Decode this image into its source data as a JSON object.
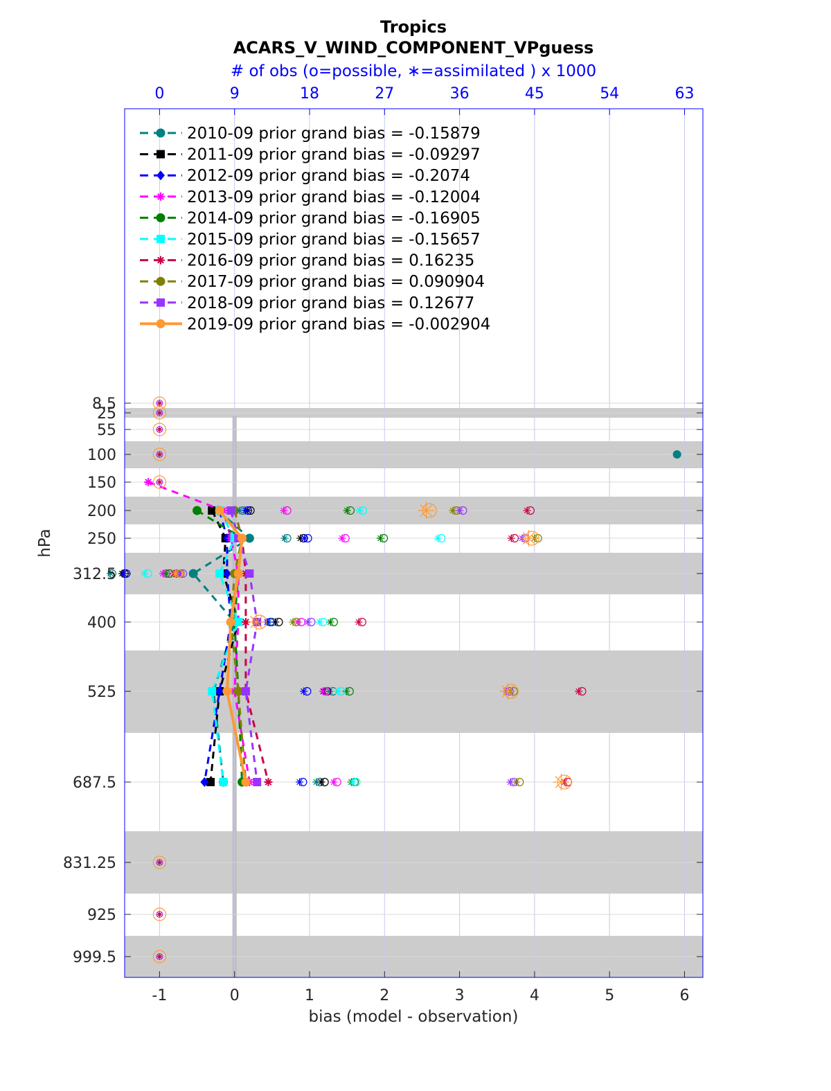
{
  "chart_data": {
    "type": "line",
    "title": "Tropics",
    "subtitle": "ACARS_V_WIND_COMPONENT_VPguess",
    "top_axis_label": "# of obs (o=possible, ∗=assimilated ) x 1000",
    "top_axis_ticks": [
      "0",
      "9",
      "18",
      "27",
      "36",
      "45",
      "54",
      "63"
    ],
    "xlabel": "bias (model - observation)",
    "ylabel": "hPa",
    "xlim": [
      -1.5,
      6.25
    ],
    "x_ticks": [
      "-1",
      "0",
      "1",
      "2",
      "3",
      "4",
      "5",
      "6"
    ],
    "levels": [
      8.5,
      25,
      55,
      100,
      150,
      200,
      250,
      312.5,
      400,
      525,
      687.5,
      831.25,
      925,
      999.5
    ],
    "level_labels": [
      "8.5",
      "25",
      "55",
      "100",
      "150",
      "200",
      "250",
      "312.5",
      "400",
      "525",
      "687.5",
      "831.25",
      "925",
      "999.5"
    ],
    "grid": true,
    "legend_position": "top-left",
    "series": [
      {
        "name": "2010-09 prior grand bias = -0.15879",
        "color": "#008080",
        "marker": "circle",
        "bias": {
          "200": -0.22,
          "250": 0.2,
          "312.5": -0.55,
          "400": 0.0,
          "525": -0.28,
          "687.5": -0.15
        },
        "obs_possible": {
          "200": 10.0,
          "250": 15.3,
          "312.5": -5.7,
          "400": 13.5,
          "525": 20.8,
          "687.5": 19.2
        },
        "obs_assimilated": {
          "200": 9.6,
          "250": 15.0,
          "312.5": -5.9,
          "400": 13.1,
          "525": 20.4,
          "687.5": 18.8
        }
      },
      {
        "name": "2011-09 prior grand bias = -0.09297",
        "color": "#000000",
        "marker": "square",
        "bias": {
          "200": -0.3,
          "250": -0.12,
          "312.5": -0.15,
          "400": 0.05,
          "525": -0.2,
          "687.5": -0.32
        },
        "obs_possible": {
          "200": 10.9,
          "250": 17.3,
          "312.5": -4.2,
          "400": 14.3,
          "525": 20.1,
          "687.5": 19.8
        },
        "obs_assimilated": {
          "200": 10.6,
          "250": 16.9,
          "312.5": -4.5,
          "400": 13.9,
          "525": 19.7,
          "687.5": 19.4
        }
      },
      {
        "name": "2012-09 prior grand bias = -0.2074",
        "color": "#0000ff",
        "marker": "diamond",
        "bias": {
          "200": -0.2,
          "250": -0.1,
          "312.5": -0.1,
          "400": -0.05,
          "525": -0.2,
          "687.5": -0.4
        },
        "obs_possible": {
          "200": 10.6,
          "250": 17.8,
          "312.5": -4.0,
          "400": 13.3,
          "525": 17.7,
          "687.5": 17.2
        },
        "obs_assimilated": {
          "200": 10.3,
          "250": 17.4,
          "312.5": -4.3,
          "400": 12.9,
          "525": 17.3,
          "687.5": 16.8
        }
      },
      {
        "name": "2013-09 prior grand bias = -0.12004",
        "color": "#ff00ff",
        "marker": "star",
        "bias": {
          "150": -1.15,
          "200": -0.15,
          "250": -0.05,
          "312.5": 0.05,
          "400": 0.05,
          "525": 0.0,
          "687.5": 0.2
        },
        "obs_possible": {
          "200": 15.3,
          "250": 22.3,
          "312.5": 0.8,
          "400": 17.0,
          "525": 20.0,
          "687.5": 21.3
        },
        "obs_assimilated": {
          "200": 14.9,
          "250": 21.9,
          "312.5": 0.4,
          "400": 16.6,
          "525": 19.6,
          "687.5": 20.9
        }
      },
      {
        "name": "2014-09 prior grand bias = -0.16905",
        "color": "#008000",
        "marker": "hexagon",
        "bias": {
          "200": -0.5,
          "250": 0.1,
          "312.5": 0.05,
          "400": 0.0,
          "525": 0.05,
          "687.5": 0.1
        },
        "obs_possible": {
          "200": 22.9,
          "250": 26.9,
          "312.5": 1.2,
          "400": 20.9,
          "525": 22.8,
          "687.5": 23.4
        },
        "obs_assimilated": {
          "200": 22.5,
          "250": 26.5,
          "312.5": 0.8,
          "400": 20.5,
          "525": 22.4,
          "687.5": 23.0
        }
      },
      {
        "name": "2015-09 prior grand bias = -0.15657",
        "color": "#00ffff",
        "marker": "square",
        "bias": {
          "200": -0.2,
          "250": 0.0,
          "312.5": -0.2,
          "400": 0.05,
          "525": -0.3,
          "687.5": -0.15
        },
        "obs_possible": {
          "200": 24.4,
          "250": 33.8,
          "312.5": -1.4,
          "400": 19.6,
          "525": 21.8,
          "687.5": 23.6
        },
        "obs_assimilated": {
          "200": 24.0,
          "250": 33.4,
          "312.5": -1.8,
          "400": 19.2,
          "525": 21.4,
          "687.5": 23.2
        }
      },
      {
        "name": "2016-09 prior grand bias = 0.16235",
        "color": "#cc0044",
        "marker": "star",
        "bias": {
          "200": 0.0,
          "250": 0.1,
          "312.5": 0.15,
          "400": 0.15,
          "525": 0.15,
          "687.5": 0.45
        },
        "obs_possible": {
          "200": 44.5,
          "250": 42.6,
          "312.5": 2.1,
          "400": 24.3,
          "525": 50.7,
          "687.5": 49.0
        },
        "obs_assimilated": {
          "200": 44.1,
          "250": 42.2,
          "312.5": 1.7,
          "400": 23.9,
          "525": 50.3,
          "687.5": 48.6
        }
      },
      {
        "name": "2017-09 prior grand bias = 0.090904",
        "color": "#808000",
        "marker": "circle",
        "bias": {
          "200": 0.0,
          "250": 0.1,
          "312.5": 0.0,
          "400": -0.05,
          "525": 0.05,
          "687.5": 0.15
        },
        "obs_possible": {
          "200": 35.6,
          "250": 45.4,
          "312.5": 2.5,
          "400": 16.4,
          "525": 42.5,
          "687.5": 43.2
        },
        "obs_assimilated": {
          "200": 35.2,
          "250": 45.0,
          "312.5": 2.1,
          "400": 16.0,
          "525": 42.1,
          "687.5": 42.8
        }
      },
      {
        "name": "2018-09 prior grand bias = 0.12677",
        "color": "#9933ff",
        "marker": "square",
        "bias": {
          "200": -0.05,
          "250": 0.05,
          "312.5": 0.2,
          "400": 0.3,
          "525": 0.15,
          "687.5": 0.3
        },
        "obs_possible": {
          "200": 36.4,
          "250": 43.9,
          "312.5": 2.8,
          "400": 18.2,
          "525": 42.0,
          "687.5": 42.5
        },
        "obs_assimilated": {
          "200": 36.0,
          "250": 43.5,
          "312.5": 2.4,
          "400": 17.8,
          "525": 41.6,
          "687.5": 42.1
        }
      },
      {
        "name": "2019-09 prior grand bias = -0.002904",
        "color": "#ff9933",
        "marker": "circle",
        "bias": {
          "200": -0.2,
          "250": 0.1,
          "312.5": 0.05,
          "400": -0.05,
          "525": -0.1,
          "687.5": 0.15
        },
        "obs_possible": {
          "200": 32.4,
          "250": 44.7,
          "312.5": 2.3,
          "400": 12.0,
          "525": 42.2,
          "687.5": 48.6
        },
        "obs_assimilated": {
          "200": 32.0,
          "250": 44.3,
          "312.5": 1.9,
          "400": 11.6,
          "525": 41.8,
          "687.5": 48.2
        }
      }
    ],
    "placeholder_obs_levels": [
      8.5,
      25,
      55,
      100,
      150,
      831.25,
      925,
      999.5
    ],
    "outlier_point": {
      "series": "2010-09",
      "level": 100,
      "bias": 5.9
    }
  }
}
